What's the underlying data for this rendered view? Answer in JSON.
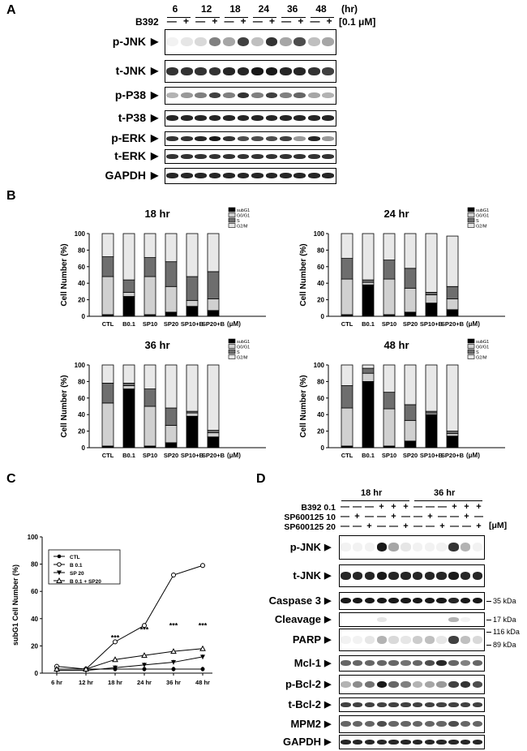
{
  "panels": {
    "a": "A",
    "b": "B",
    "c": "C",
    "d": "D"
  },
  "panel_a": {
    "time_points": [
      "6",
      "12",
      "18",
      "24",
      "36",
      "48"
    ],
    "time_unit": "(hr)",
    "treatment": "B392",
    "dose_unit": "[0.1 μM]",
    "signs": [
      "—",
      "+",
      "—",
      "+",
      "—",
      "+",
      "—",
      "+",
      "—",
      "+",
      "—",
      "+"
    ],
    "blots": [
      {
        "label": "p-JNK",
        "arrow": "▶",
        "bands": [
          0.05,
          0.1,
          0.15,
          0.5,
          0.35,
          0.75,
          0.25,
          0.8,
          0.35,
          0.7,
          0.25,
          0.35
        ]
      },
      {
        "label": "t-JNK",
        "arrow": "▶",
        "bands": [
          0.8,
          0.8,
          0.8,
          0.8,
          0.85,
          0.85,
          0.9,
          0.9,
          0.85,
          0.85,
          0.8,
          0.75
        ]
      },
      {
        "label": "p-P38",
        "arrow": "▶",
        "bands": [
          0.3,
          0.4,
          0.5,
          0.75,
          0.5,
          0.8,
          0.5,
          0.75,
          0.5,
          0.6,
          0.35,
          0.3
        ]
      },
      {
        "label": "t-P38",
        "arrow": "▶",
        "bands": [
          0.85,
          0.85,
          0.85,
          0.85,
          0.85,
          0.85,
          0.85,
          0.85,
          0.85,
          0.85,
          0.85,
          0.85
        ]
      },
      {
        "label": "p-ERK",
        "arrow": "▶",
        "bands": [
          0.8,
          0.8,
          0.85,
          0.9,
          0.8,
          0.7,
          0.7,
          0.7,
          0.75,
          0.4,
          0.85,
          0.4
        ]
      },
      {
        "label": "t-ERK",
        "arrow": "▶",
        "bands": [
          0.8,
          0.8,
          0.8,
          0.8,
          0.8,
          0.8,
          0.8,
          0.8,
          0.8,
          0.8,
          0.8,
          0.8
        ]
      },
      {
        "label": "GAPDH",
        "arrow": "▶",
        "bands": [
          0.85,
          0.85,
          0.85,
          0.85,
          0.85,
          0.85,
          0.85,
          0.85,
          0.85,
          0.85,
          0.85,
          0.85
        ]
      }
    ]
  },
  "panel_b_legend": [
    "subG1",
    "G0/G1",
    "S",
    "G2/M"
  ],
  "colors": {
    "subG1": "#000000",
    "g0g1": "#d0d0d0",
    "s": "#6e6e6e",
    "g2m": "#e8e8e8"
  },
  "chart_data": [
    {
      "type": "bar",
      "stacked": true,
      "title": "18 hr",
      "ylabel": "Cell Number (%)",
      "unit": "(μM)",
      "ylim": [
        0,
        100
      ],
      "yticks": [
        "0",
        "20",
        "40",
        "60",
        "80",
        "100"
      ],
      "categories": [
        "CTL",
        "B0.1",
        "SP10",
        "SP20",
        "SP10+B",
        "SP20+B"
      ],
      "series": [
        {
          "name": "subG1",
          "values": [
            2,
            24,
            2,
            5,
            12,
            7
          ]
        },
        {
          "name": "G0/G1",
          "values": [
            46,
            5,
            46,
            31,
            7,
            14
          ]
        },
        {
          "name": "S",
          "values": [
            24,
            15,
            23,
            30,
            29,
            33
          ]
        },
        {
          "name": "G2/M",
          "values": [
            28,
            56,
            29,
            34,
            52,
            46
          ]
        }
      ]
    },
    {
      "type": "bar",
      "stacked": true,
      "title": "24 hr",
      "ylabel": "Cell Number (%)",
      "unit": "(μM)",
      "ylim": [
        0,
        100
      ],
      "yticks": [
        "0",
        "20",
        "40",
        "60",
        "80",
        "100"
      ],
      "categories": [
        "CTL",
        "B0.1",
        "SP10",
        "SP20",
        "SP10+B",
        "SP20+B"
      ],
      "series": [
        {
          "name": "subG1",
          "values": [
            2,
            38,
            2,
            5,
            16,
            8
          ]
        },
        {
          "name": "G0/G1",
          "values": [
            43,
            3,
            43,
            29,
            10,
            13
          ]
        },
        {
          "name": "S",
          "values": [
            25,
            3,
            23,
            24,
            3,
            15
          ]
        },
        {
          "name": "G2/M",
          "values": [
            30,
            56,
            32,
            42,
            71,
            61
          ]
        }
      ]
    },
    {
      "type": "bar",
      "stacked": true,
      "title": "36 hr",
      "ylabel": "Cell Number (%)",
      "unit": "(μM)",
      "ylim": [
        0,
        100
      ],
      "yticks": [
        "0",
        "20",
        "40",
        "60",
        "80",
        "100"
      ],
      "categories": [
        "CTL",
        "B0.1",
        "SP10",
        "SP20",
        "SP10+B",
        "SP20+B"
      ],
      "series": [
        {
          "name": "subG1",
          "values": [
            2,
            71,
            2,
            6,
            38,
            13
          ]
        },
        {
          "name": "G0/G1",
          "values": [
            52,
            4,
            48,
            21,
            4,
            5
          ]
        },
        {
          "name": "S",
          "values": [
            24,
            3,
            21,
            21,
            2,
            3
          ]
        },
        {
          "name": "G2/M",
          "values": [
            22,
            22,
            29,
            52,
            56,
            79
          ]
        }
      ]
    },
    {
      "type": "bar",
      "stacked": true,
      "title": "48 hr",
      "ylabel": "Cell Number (%)",
      "unit": "(μM)",
      "ylim": [
        0,
        100
      ],
      "yticks": [
        "0",
        "20",
        "40",
        "60",
        "80",
        "100"
      ],
      "categories": [
        "CTL",
        "B0.1",
        "SP10",
        "SP20",
        "SP10+B",
        "SP20+B"
      ],
      "series": [
        {
          "name": "subG1",
          "values": [
            2,
            80,
            2,
            8,
            40,
            14
          ]
        },
        {
          "name": "G0/G1",
          "values": [
            46,
            10,
            45,
            25,
            2,
            3
          ]
        },
        {
          "name": "S",
          "values": [
            27,
            6,
            20,
            19,
            2,
            3
          ]
        },
        {
          "name": "G2/M",
          "values": [
            25,
            4,
            33,
            48,
            56,
            80
          ]
        }
      ]
    },
    {
      "type": "line",
      "ylabel": "subG1 Cell Number (%)",
      "ylim": [
        0,
        100
      ],
      "yticks": [
        "0",
        "20",
        "40",
        "60",
        "80",
        "100"
      ],
      "categories": [
        "6 hr",
        "12 hr",
        "18 hr",
        "24 hr",
        "36 hr",
        "48 hr"
      ],
      "series": [
        {
          "name": "CTL",
          "marker": "circle-filled",
          "values": [
            3,
            3,
            3,
            3,
            3,
            3
          ]
        },
        {
          "name": "B 0.1",
          "marker": "circle-open",
          "values": [
            5,
            3,
            23,
            35,
            72,
            79
          ]
        },
        {
          "name": "SP 20",
          "marker": "triangle-down",
          "values": [
            2,
            2,
            4,
            6,
            8,
            12
          ]
        },
        {
          "name": "B 0.1 + SP20",
          "marker": "triangle-up",
          "values": [
            3,
            3,
            10,
            13,
            16,
            18
          ]
        }
      ],
      "annotations": [
        {
          "x": "18 hr",
          "text": "***"
        },
        {
          "x": "24 hr",
          "text": "***"
        },
        {
          "x": "36 hr",
          "text": "***"
        },
        {
          "x": "48 hr",
          "text": "***"
        }
      ]
    }
  ],
  "panel_d": {
    "groups": [
      "18 hr",
      "36 hr"
    ],
    "rows": [
      {
        "label": "B392 0.1",
        "signs": [
          "—",
          "—",
          "—",
          "+",
          "+",
          "+",
          "—",
          "—",
          "—",
          "+",
          "+",
          "+"
        ]
      },
      {
        "label": "SP600125 10",
        "signs": [
          "—",
          "+",
          "—",
          "—",
          "+",
          "—",
          "—",
          "+",
          "—",
          "—",
          "+",
          "—"
        ]
      },
      {
        "label": "SP600125 20",
        "signs": [
          "—",
          "—",
          "+",
          "—",
          "—",
          "+",
          "—",
          "—",
          "+",
          "—",
          "—",
          "+"
        ]
      }
    ],
    "dose_unit": "[μM]",
    "blots": [
      {
        "label": "p-JNK",
        "arrow": "▶",
        "bands": [
          0.05,
          0.05,
          0.05,
          0.9,
          0.35,
          0.1,
          0.05,
          0.05,
          0.05,
          0.8,
          0.3,
          0.05
        ]
      },
      {
        "label": "t-JNK",
        "arrow": "▶",
        "bands": [
          0.85,
          0.85,
          0.85,
          0.9,
          0.85,
          0.85,
          0.85,
          0.85,
          0.85,
          0.9,
          0.85,
          0.85
        ]
      },
      {
        "label": "Caspase 3",
        "arrow": "▶",
        "bands": [
          0.9,
          0.9,
          0.9,
          0.9,
          0.9,
          0.9,
          0.9,
          0.9,
          0.9,
          0.85,
          0.9,
          0.9
        ],
        "kda": "35 kDa"
      },
      {
        "label": "Cleavage",
        "arrow": "▶",
        "bands": [
          0.0,
          0.0,
          0.0,
          0.1,
          0.0,
          0.0,
          0.0,
          0.0,
          0.0,
          0.3,
          0.05,
          0.0
        ],
        "kda": "17 kDa"
      },
      {
        "label": "PARP",
        "arrow": "▶",
        "bands": [
          0.05,
          0.05,
          0.1,
          0.3,
          0.15,
          0.1,
          0.2,
          0.25,
          0.1,
          0.75,
          0.25,
          0.15
        ],
        "kda": "116 kDa",
        "kda2": "89 kDa"
      },
      {
        "label": "Mcl-1",
        "arrow": "▶",
        "bands": [
          0.6,
          0.6,
          0.6,
          0.6,
          0.6,
          0.55,
          0.6,
          0.7,
          0.85,
          0.6,
          0.5,
          0.6
        ]
      },
      {
        "label": "p-Bcl-2",
        "arrow": "▶",
        "bands": [
          0.3,
          0.45,
          0.55,
          0.9,
          0.6,
          0.5,
          0.3,
          0.35,
          0.4,
          0.75,
          0.8,
          0.7
        ]
      },
      {
        "label": "t-Bcl-2",
        "arrow": "▶",
        "bands": [
          0.75,
          0.75,
          0.75,
          0.75,
          0.75,
          0.75,
          0.75,
          0.75,
          0.75,
          0.75,
          0.75,
          0.75
        ]
      },
      {
        "label": "MPM2",
        "arrow": "▶",
        "bands": [
          0.6,
          0.6,
          0.6,
          0.7,
          0.6,
          0.6,
          0.6,
          0.6,
          0.6,
          0.7,
          0.6,
          0.6
        ]
      },
      {
        "label": "GAPDH",
        "arrow": "▶",
        "bands": [
          0.85,
          0.85,
          0.85,
          0.85,
          0.85,
          0.85,
          0.85,
          0.85,
          0.85,
          0.85,
          0.85,
          0.85
        ]
      }
    ]
  }
}
